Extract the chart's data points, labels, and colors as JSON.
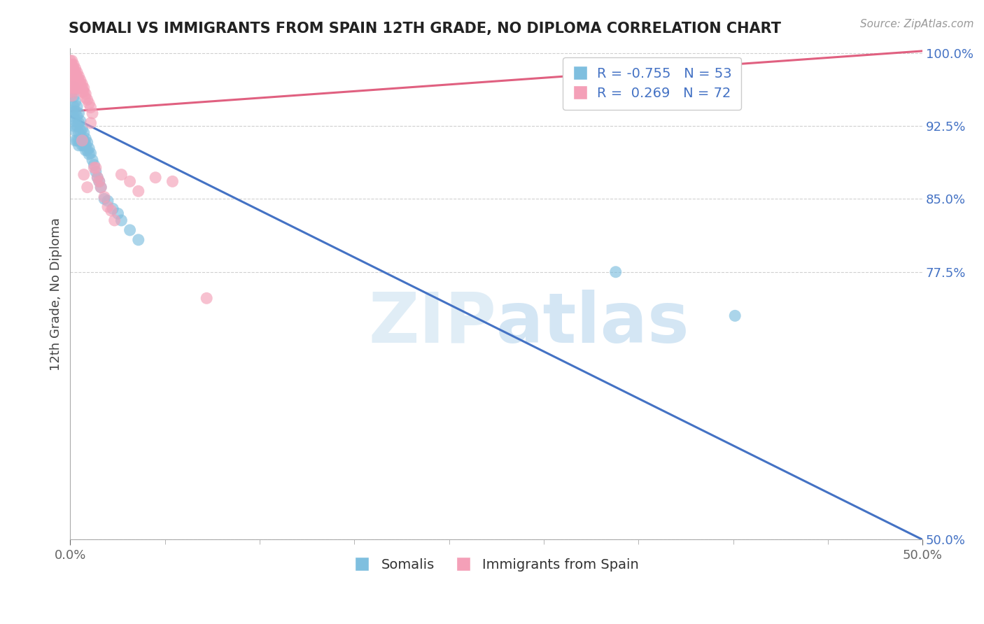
{
  "title": "SOMALI VS IMMIGRANTS FROM SPAIN 12TH GRADE, NO DIPLOMA CORRELATION CHART",
  "source_text": "Source: ZipAtlas.com",
  "ylabel_text": "12th Grade, No Diploma",
  "legend_somali": "Somalis",
  "legend_spain": "Immigrants from Spain",
  "R_somali": -0.755,
  "N_somali": 53,
  "R_spain": 0.269,
  "N_spain": 72,
  "x_min": 0.0,
  "x_max": 0.5,
  "y_min": 0.5,
  "y_max": 1.005,
  "y_ticks": [
    0.5,
    0.775,
    0.85,
    0.925,
    1.0
  ],
  "y_tick_labels": [
    "50.0%",
    "77.5%",
    "85.0%",
    "92.5%",
    "100.0%"
  ],
  "x_tick_positions": [
    0.0,
    0.5
  ],
  "x_tick_labels": [
    "0.0%",
    "50.0%"
  ],
  "somali_color": "#7fbfdf",
  "spain_color": "#f4a0b8",
  "somali_line_color": "#4472c4",
  "spain_line_color": "#e06080",
  "watermark_zip": "ZIP",
  "watermark_atlas": "atlas",
  "background_color": "#ffffff",
  "grid_color": "#d0d0d0",
  "somali_x": [
    0.001,
    0.001,
    0.002,
    0.002,
    0.002,
    0.002,
    0.002,
    0.003,
    0.003,
    0.003,
    0.003,
    0.003,
    0.004,
    0.004,
    0.004,
    0.004,
    0.005,
    0.005,
    0.005,
    0.005,
    0.005,
    0.006,
    0.006,
    0.006,
    0.007,
    0.007,
    0.007,
    0.008,
    0.008,
    0.008,
    0.009,
    0.009,
    0.009,
    0.01,
    0.01,
    0.011,
    0.011,
    0.012,
    0.013,
    0.014,
    0.015,
    0.016,
    0.017,
    0.018,
    0.02,
    0.022,
    0.025,
    0.028,
    0.03,
    0.035,
    0.04,
    0.32,
    0.39
  ],
  "somali_y": [
    0.96,
    0.94,
    0.965,
    0.955,
    0.945,
    0.935,
    0.925,
    0.95,
    0.94,
    0.93,
    0.92,
    0.91,
    0.945,
    0.935,
    0.925,
    0.91,
    0.938,
    0.928,
    0.918,
    0.91,
    0.905,
    0.93,
    0.92,
    0.91,
    0.922,
    0.912,
    0.905,
    0.918,
    0.91,
    0.905,
    0.912,
    0.906,
    0.9,
    0.908,
    0.9,
    0.902,
    0.896,
    0.897,
    0.89,
    0.885,
    0.878,
    0.872,
    0.868,
    0.862,
    0.85,
    0.848,
    0.84,
    0.835,
    0.828,
    0.818,
    0.808,
    0.775,
    0.73
  ],
  "spain_x": [
    0.0,
    0.0,
    0.0,
    0.0,
    0.0,
    0.0,
    0.0,
    0.001,
    0.001,
    0.001,
    0.001,
    0.001,
    0.001,
    0.001,
    0.001,
    0.001,
    0.001,
    0.002,
    0.002,
    0.002,
    0.002,
    0.002,
    0.002,
    0.002,
    0.003,
    0.003,
    0.003,
    0.003,
    0.003,
    0.003,
    0.004,
    0.004,
    0.004,
    0.004,
    0.004,
    0.005,
    0.005,
    0.005,
    0.005,
    0.006,
    0.006,
    0.006,
    0.007,
    0.007,
    0.007,
    0.007,
    0.008,
    0.008,
    0.008,
    0.009,
    0.009,
    0.01,
    0.01,
    0.011,
    0.012,
    0.012,
    0.013,
    0.014,
    0.015,
    0.016,
    0.017,
    0.018,
    0.02,
    0.022,
    0.024,
    0.026,
    0.03,
    0.035,
    0.04,
    0.05,
    0.06,
    0.08
  ],
  "spain_y": [
    0.992,
    0.988,
    0.984,
    0.98,
    0.976,
    0.972,
    0.968,
    0.992,
    0.988,
    0.984,
    0.98,
    0.976,
    0.972,
    0.968,
    0.964,
    0.96,
    0.956,
    0.988,
    0.984,
    0.98,
    0.976,
    0.972,
    0.968,
    0.964,
    0.984,
    0.98,
    0.976,
    0.972,
    0.968,
    0.964,
    0.98,
    0.976,
    0.972,
    0.968,
    0.964,
    0.976,
    0.972,
    0.968,
    0.964,
    0.972,
    0.968,
    0.964,
    0.968,
    0.964,
    0.96,
    0.91,
    0.964,
    0.96,
    0.875,
    0.958,
    0.954,
    0.952,
    0.862,
    0.948,
    0.944,
    0.928,
    0.938,
    0.882,
    0.882,
    0.872,
    0.868,
    0.862,
    0.852,
    0.842,
    0.838,
    0.828,
    0.875,
    0.868,
    0.858,
    0.872,
    0.868,
    0.748
  ]
}
